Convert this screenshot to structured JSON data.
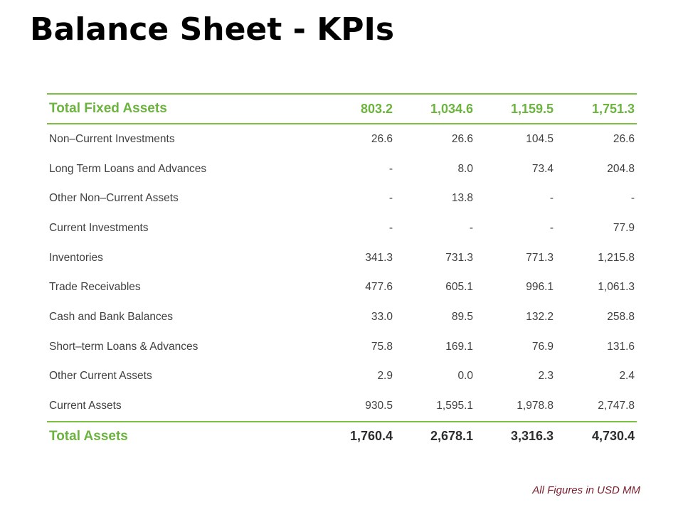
{
  "page": {
    "title": "Balance Sheet - KPIs",
    "footnote": "All Figures in USD MM"
  },
  "colors": {
    "accent_green": "#7ac143",
    "footnote_text": "#7b1f2e"
  },
  "table": {
    "header_row": {
      "label": "Total Fixed Assets",
      "values": [
        "803.2",
        "1,034.6",
        "1,159.5",
        "1,751.3"
      ]
    },
    "rows": [
      {
        "label": "Non–Current Investments",
        "values": [
          "26.6",
          "26.6",
          "104.5",
          "26.6"
        ]
      },
      {
        "label": "Long Term Loans and Advances",
        "values": [
          "-",
          "8.0",
          "73.4",
          "204.8"
        ]
      },
      {
        "label": "Other Non–Current Assets",
        "values": [
          "-",
          "13.8",
          "-",
          "-"
        ]
      },
      {
        "label": "Current Investments",
        "values": [
          "-",
          "-",
          "-",
          "77.9"
        ]
      },
      {
        "label": "Inventories",
        "values": [
          "341.3",
          "731.3",
          "771.3",
          "1,215.8"
        ]
      },
      {
        "label": "Trade Receivables",
        "values": [
          "477.6",
          "605.1",
          "996.1",
          "1,061.3"
        ]
      },
      {
        "label": "Cash and Bank Balances",
        "values": [
          "33.0",
          "89.5",
          "132.2",
          "258.8"
        ]
      },
      {
        "label": "Short–term Loans & Advances",
        "values": [
          "75.8",
          "169.1",
          "76.9",
          "131.6"
        ]
      },
      {
        "label": "Other Current Assets",
        "values": [
          "2.9",
          "0.0",
          "2.3",
          "2.4"
        ]
      },
      {
        "label": "Current Assets",
        "values": [
          "930.5",
          "1,595.1",
          "1,978.8",
          "2,747.8"
        ]
      }
    ],
    "total_row": {
      "label": "Total Assets",
      "values": [
        "1,760.4",
        "2,678.1",
        "3,316.3",
        "4,730.4"
      ]
    }
  }
}
